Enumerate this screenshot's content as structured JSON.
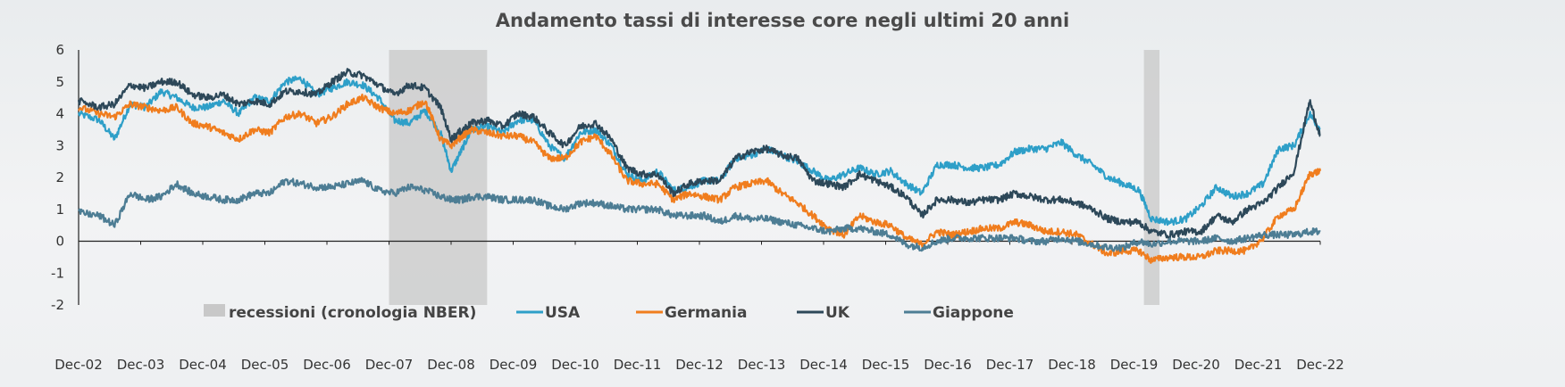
{
  "chart_data": {
    "type": "line",
    "title": "Andamento tassi di interesse core negli ultimi 20 anni",
    "xlabel": "",
    "ylabel": "",
    "ylim": [
      -2,
      6
    ],
    "yticks": [
      "6",
      "5",
      "4",
      "3",
      "2",
      "1",
      "0",
      "-1",
      "-2"
    ],
    "x_ticks": [
      "Dec-02",
      "Dec-03",
      "Dec-04",
      "Dec-05",
      "Dec-06",
      "Dec-07",
      "Dec-08",
      "Dec-09",
      "Dec-10",
      "Dec-11",
      "Dec-12",
      "Dec-13",
      "Dec-14",
      "Dec-15",
      "Dec-16",
      "Dec-17",
      "Dec-18",
      "Dec-19",
      "Dec-20",
      "Dec-21",
      "Dec-22"
    ],
    "x_range": [
      2002.92,
      2022.92
    ],
    "recessions": [
      {
        "start": 2007.92,
        "end": 2009.5
      },
      {
        "start": 2020.08,
        "end": 2020.33
      }
    ],
    "recession_label": "recessioni (cronologia NBER)",
    "recession_color": "#c8c8c8",
    "legend_position": "bottom-left-inside",
    "series": [
      {
        "name": "USA",
        "color": "#2e9fc8",
        "x": [
          2002.92,
          2003.25,
          2003.5,
          2003.75,
          2004.0,
          2004.25,
          2004.5,
          2004.75,
          2005.0,
          2005.25,
          2005.5,
          2005.75,
          2006.0,
          2006.25,
          2006.5,
          2006.75,
          2007.0,
          2007.25,
          2007.5,
          2007.75,
          2008.0,
          2008.25,
          2008.5,
          2008.75,
          2008.92,
          2009.1,
          2009.25,
          2009.5,
          2009.75,
          2010.0,
          2010.25,
          2010.5,
          2010.75,
          2011.0,
          2011.25,
          2011.5,
          2011.75,
          2012.0,
          2012.25,
          2012.5,
          2012.75,
          2013.0,
          2013.25,
          2013.5,
          2013.75,
          2014.0,
          2014.25,
          2014.5,
          2014.75,
          2015.0,
          2015.25,
          2015.5,
          2015.75,
          2016.0,
          2016.25,
          2016.5,
          2016.75,
          2017.0,
          2017.25,
          2017.5,
          2017.75,
          2018.0,
          2018.25,
          2018.5,
          2018.75,
          2019.0,
          2019.25,
          2019.5,
          2019.75,
          2020.0,
          2020.2,
          2020.5,
          2020.75,
          2021.0,
          2021.25,
          2021.5,
          2021.75,
          2022.0,
          2022.25,
          2022.5,
          2022.75,
          2022.92
        ],
        "values": [
          4.0,
          3.8,
          3.2,
          4.3,
          4.2,
          4.7,
          4.5,
          4.2,
          4.2,
          4.4,
          4.0,
          4.5,
          4.4,
          5.0,
          5.1,
          4.6,
          4.8,
          5.0,
          4.9,
          4.5,
          3.8,
          3.7,
          4.1,
          3.4,
          2.2,
          2.9,
          3.5,
          3.6,
          3.4,
          3.8,
          3.8,
          3.0,
          2.6,
          3.4,
          3.5,
          3.0,
          2.1,
          1.9,
          2.2,
          1.6,
          1.7,
          1.9,
          1.9,
          2.6,
          2.7,
          2.9,
          2.7,
          2.5,
          2.2,
          1.9,
          2.1,
          2.3,
          2.1,
          2.2,
          1.8,
          1.5,
          2.4,
          2.4,
          2.3,
          2.3,
          2.4,
          2.8,
          2.9,
          2.9,
          3.1,
          2.7,
          2.4,
          2.0,
          1.8,
          1.6,
          0.7,
          0.6,
          0.7,
          1.1,
          1.7,
          1.4,
          1.5,
          1.8,
          2.9,
          3.0,
          4.0,
          3.5
        ]
      },
      {
        "name": "Germania",
        "color": "#f07d1e",
        "x": [
          2002.92,
          2003.25,
          2003.5,
          2003.75,
          2004.0,
          2004.25,
          2004.5,
          2004.75,
          2005.0,
          2005.25,
          2005.5,
          2005.75,
          2006.0,
          2006.25,
          2006.5,
          2006.75,
          2007.0,
          2007.25,
          2007.5,
          2007.75,
          2008.0,
          2008.25,
          2008.5,
          2008.75,
          2008.92,
          2009.1,
          2009.25,
          2009.5,
          2009.75,
          2010.0,
          2010.25,
          2010.5,
          2010.75,
          2011.0,
          2011.25,
          2011.5,
          2011.75,
          2012.0,
          2012.25,
          2012.5,
          2012.75,
          2013.0,
          2013.25,
          2013.5,
          2013.75,
          2014.0,
          2014.25,
          2014.5,
          2014.75,
          2015.0,
          2015.25,
          2015.5,
          2015.75,
          2016.0,
          2016.25,
          2016.5,
          2016.75,
          2017.0,
          2017.25,
          2017.5,
          2017.75,
          2018.0,
          2018.25,
          2018.5,
          2018.75,
          2019.0,
          2019.25,
          2019.5,
          2019.75,
          2020.0,
          2020.2,
          2020.5,
          2020.75,
          2021.0,
          2021.25,
          2021.5,
          2021.75,
          2022.0,
          2022.25,
          2022.5,
          2022.75,
          2022.92
        ],
        "values": [
          4.2,
          4.0,
          3.9,
          4.3,
          4.2,
          4.1,
          4.2,
          3.7,
          3.6,
          3.4,
          3.2,
          3.5,
          3.4,
          3.9,
          4.0,
          3.7,
          3.9,
          4.3,
          4.5,
          4.2,
          4.0,
          4.1,
          4.4,
          3.2,
          3.0,
          3.3,
          3.5,
          3.4,
          3.3,
          3.3,
          3.1,
          2.6,
          2.6,
          3.1,
          3.3,
          2.7,
          1.9,
          1.8,
          1.8,
          1.3,
          1.5,
          1.4,
          1.3,
          1.7,
          1.8,
          1.9,
          1.5,
          1.2,
          0.8,
          0.4,
          0.2,
          0.8,
          0.6,
          0.5,
          0.1,
          -0.1,
          0.3,
          0.2,
          0.3,
          0.4,
          0.4,
          0.6,
          0.5,
          0.3,
          0.3,
          0.2,
          -0.1,
          -0.4,
          -0.3,
          -0.3,
          -0.6,
          -0.5,
          -0.5,
          -0.5,
          -0.3,
          -0.3,
          -0.3,
          0.1,
          0.8,
          1.0,
          2.1,
          2.2
        ]
      },
      {
        "name": "UK",
        "color": "#2d4859",
        "x": [
          2002.92,
          2003.25,
          2003.5,
          2003.75,
          2004.0,
          2004.25,
          2004.5,
          2004.75,
          2005.0,
          2005.25,
          2005.5,
          2005.75,
          2006.0,
          2006.25,
          2006.5,
          2006.75,
          2007.0,
          2007.25,
          2007.5,
          2007.75,
          2008.0,
          2008.25,
          2008.5,
          2008.75,
          2008.92,
          2009.1,
          2009.25,
          2009.5,
          2009.75,
          2010.0,
          2010.25,
          2010.5,
          2010.75,
          2011.0,
          2011.25,
          2011.5,
          2011.75,
          2012.0,
          2012.25,
          2012.5,
          2012.75,
          2013.0,
          2013.25,
          2013.5,
          2013.75,
          2014.0,
          2014.25,
          2014.5,
          2014.75,
          2015.0,
          2015.25,
          2015.5,
          2015.75,
          2016.0,
          2016.25,
          2016.5,
          2016.75,
          2017.0,
          2017.25,
          2017.5,
          2017.75,
          2018.0,
          2018.25,
          2018.5,
          2018.75,
          2019.0,
          2019.25,
          2019.5,
          2019.75,
          2020.0,
          2020.2,
          2020.5,
          2020.75,
          2021.0,
          2021.25,
          2021.5,
          2021.75,
          2022.0,
          2022.25,
          2022.5,
          2022.75,
          2022.92
        ],
        "values": [
          4.4,
          4.2,
          4.3,
          4.9,
          4.8,
          5.0,
          5.0,
          4.6,
          4.5,
          4.6,
          4.3,
          4.4,
          4.3,
          4.7,
          4.7,
          4.6,
          5.0,
          5.3,
          5.2,
          4.9,
          4.6,
          4.9,
          4.8,
          4.2,
          3.2,
          3.5,
          3.7,
          3.8,
          3.6,
          4.0,
          3.9,
          3.4,
          3.0,
          3.6,
          3.7,
          3.2,
          2.3,
          2.1,
          2.1,
          1.5,
          1.8,
          1.9,
          1.9,
          2.6,
          2.8,
          2.9,
          2.7,
          2.6,
          1.9,
          1.8,
          1.7,
          2.1,
          1.9,
          1.7,
          1.4,
          0.8,
          1.3,
          1.3,
          1.2,
          1.3,
          1.3,
          1.5,
          1.4,
          1.3,
          1.3,
          1.2,
          1.0,
          0.7,
          0.6,
          0.6,
          0.3,
          0.2,
          0.3,
          0.3,
          0.8,
          0.6,
          1.0,
          1.2,
          1.7,
          2.2,
          4.4,
          3.3
        ]
      },
      {
        "name": "Giappone",
        "color": "#4d7d94",
        "x": [
          2002.92,
          2003.25,
          2003.5,
          2003.75,
          2004.0,
          2004.25,
          2004.5,
          2004.75,
          2005.0,
          2005.25,
          2005.5,
          2005.75,
          2006.0,
          2006.25,
          2006.5,
          2006.75,
          2007.0,
          2007.25,
          2007.5,
          2007.75,
          2008.0,
          2008.25,
          2008.5,
          2008.75,
          2008.92,
          2009.1,
          2009.25,
          2009.5,
          2009.75,
          2010.0,
          2010.25,
          2010.5,
          2010.75,
          2011.0,
          2011.25,
          2011.5,
          2011.75,
          2012.0,
          2012.25,
          2012.5,
          2012.75,
          2013.0,
          2013.25,
          2013.5,
          2013.75,
          2014.0,
          2014.25,
          2014.5,
          2014.75,
          2015.0,
          2015.25,
          2015.5,
          2015.75,
          2016.0,
          2016.25,
          2016.5,
          2016.75,
          2017.0,
          2017.25,
          2017.5,
          2017.75,
          2018.0,
          2018.25,
          2018.5,
          2018.75,
          2019.0,
          2019.25,
          2019.5,
          2019.75,
          2020.0,
          2020.2,
          2020.5,
          2020.75,
          2021.0,
          2021.25,
          2021.5,
          2021.75,
          2022.0,
          2022.25,
          2022.5,
          2022.75,
          2022.92
        ],
        "values": [
          0.9,
          0.8,
          0.5,
          1.5,
          1.3,
          1.4,
          1.8,
          1.5,
          1.4,
          1.3,
          1.3,
          1.5,
          1.5,
          1.9,
          1.8,
          1.7,
          1.7,
          1.8,
          1.9,
          1.6,
          1.5,
          1.7,
          1.6,
          1.4,
          1.3,
          1.3,
          1.4,
          1.4,
          1.3,
          1.3,
          1.3,
          1.1,
          1.0,
          1.2,
          1.2,
          1.1,
          1.0,
          1.0,
          1.0,
          0.8,
          0.8,
          0.8,
          0.6,
          0.8,
          0.7,
          0.7,
          0.6,
          0.5,
          0.4,
          0.3,
          0.4,
          0.4,
          0.3,
          0.2,
          -0.1,
          -0.2,
          0.0,
          0.1,
          0.1,
          0.1,
          0.1,
          0.1,
          0.0,
          0.0,
          0.1,
          0.0,
          -0.1,
          -0.2,
          -0.2,
          0.0,
          -0.1,
          0.0,
          0.0,
          0.0,
          0.1,
          0.0,
          0.1,
          0.2,
          0.2,
          0.2,
          0.3,
          0.3
        ]
      }
    ]
  }
}
